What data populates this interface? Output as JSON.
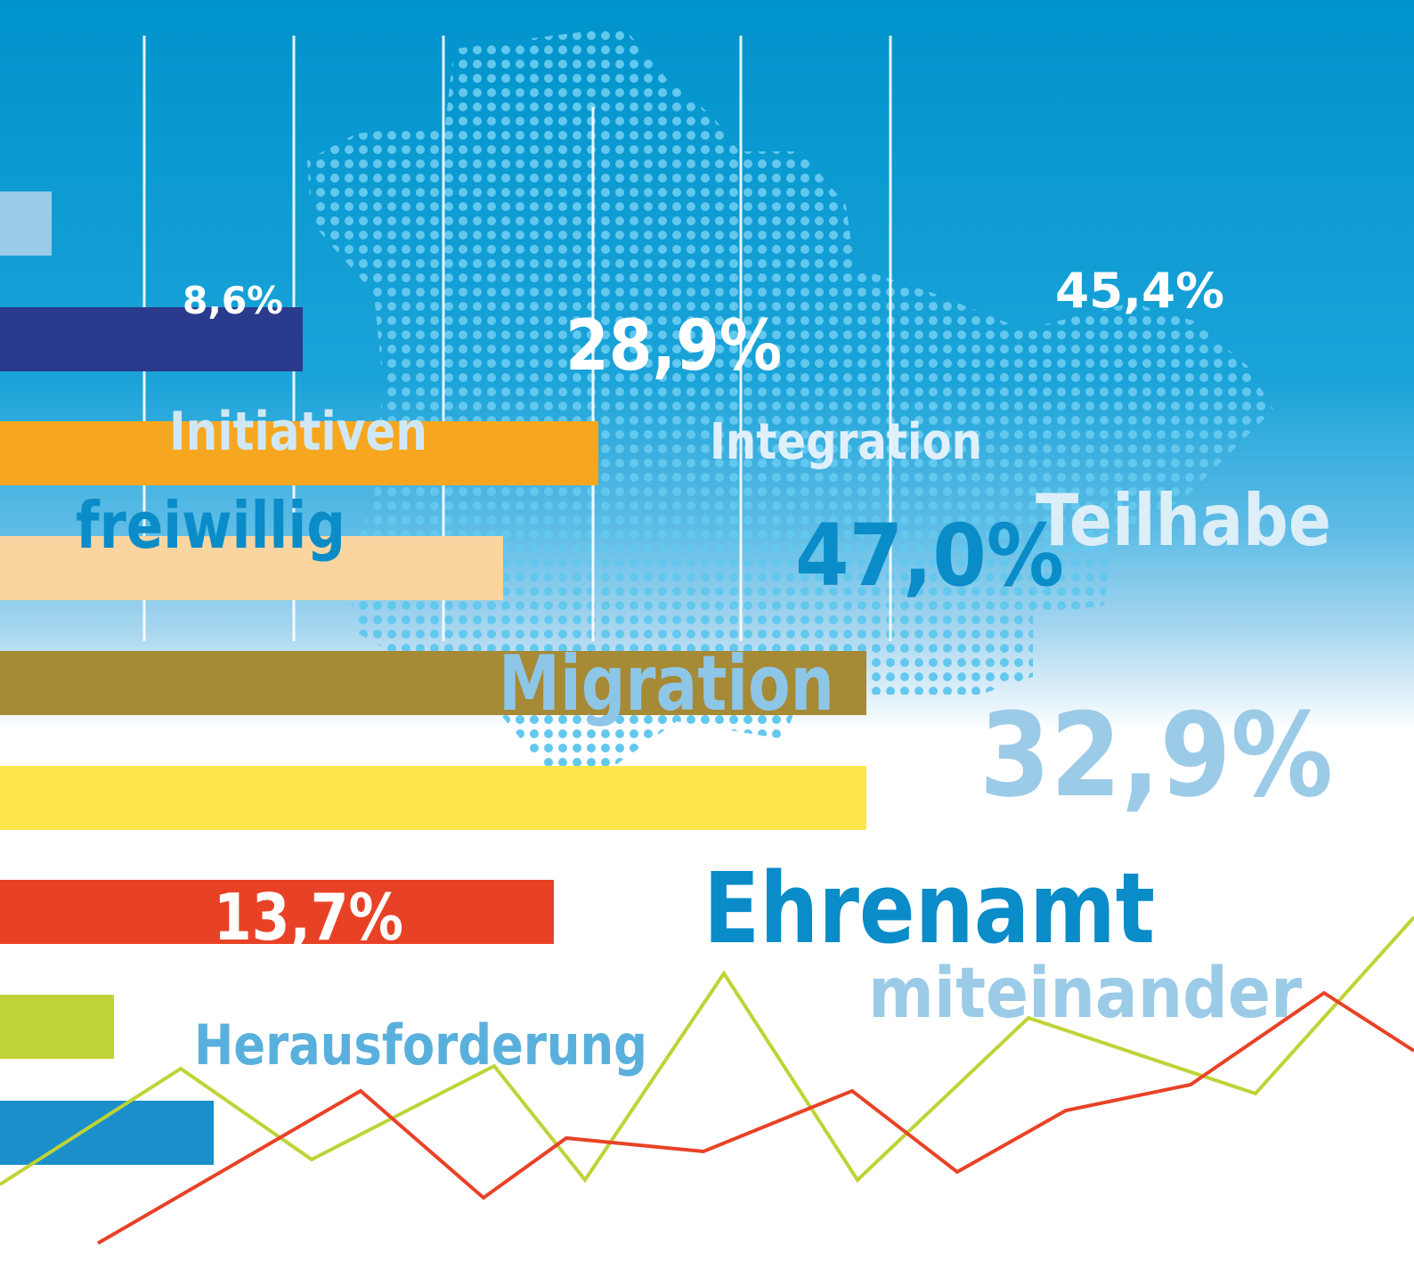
{
  "words": [
    "8,6%",
    "28,9%",
    "45,4%",
    "Initiativen",
    "Integration",
    "freiwillig",
    "Teilhabe",
    "47,0%",
    "Migration",
    "32,9%",
    "Ehrenamt",
    "miteinander",
    "13,7%",
    "Herausforderung"
  ]
}
